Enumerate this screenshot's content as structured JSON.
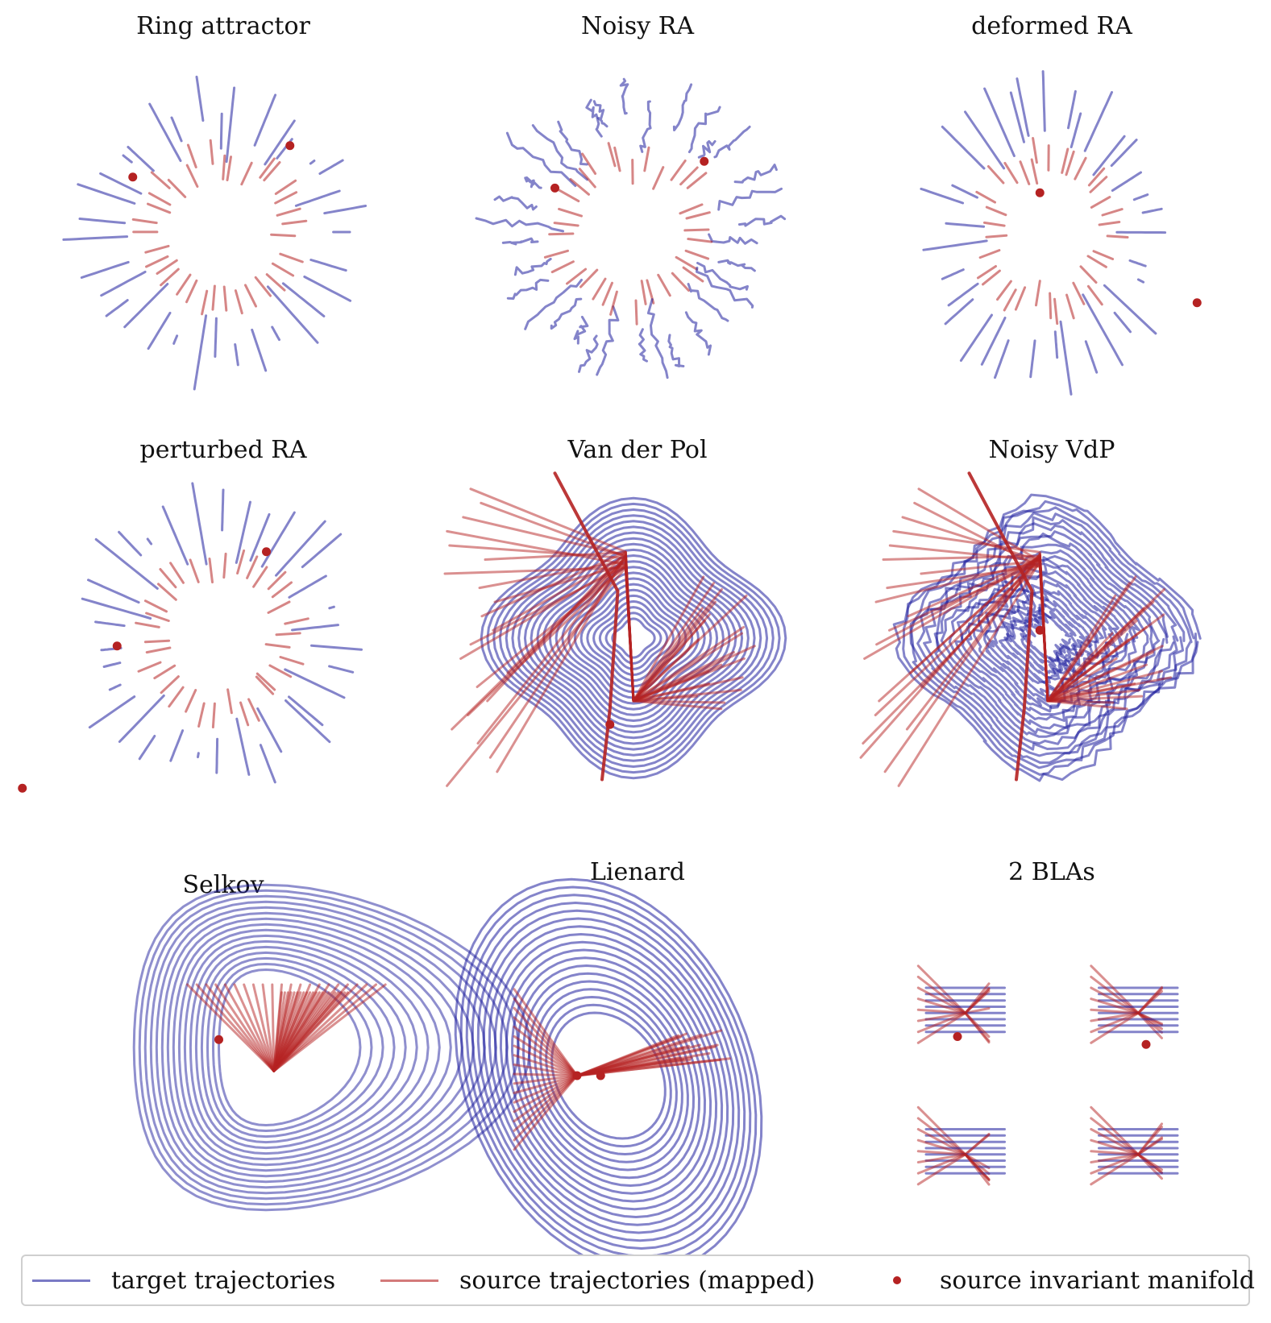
{
  "colors": {
    "target": "#1f1f9e",
    "source": "#b52222",
    "manifold": "#b52222"
  },
  "legend": {
    "target_label": "target trajectories",
    "source_label": "source trajectories (mapped)",
    "manifold_label": "source invariant manifold"
  },
  "chart_data": [
    {
      "type": "line",
      "title": "Ring attractor",
      "kind": "ring",
      "manifold_points": [
        [
          -0.55,
          0.35
        ],
        [
          0.45,
          0.55
        ]
      ]
    },
    {
      "type": "line",
      "title": "Noisy RA",
      "kind": "ring_noisy",
      "manifold_points": [
        [
          -0.5,
          0.28
        ],
        [
          0.45,
          0.45
        ]
      ]
    },
    {
      "type": "line",
      "title": "deformed RA",
      "kind": "ring_deformed",
      "manifold_points": [
        [
          -0.05,
          0.25
        ],
        [
          0.95,
          -0.45
        ]
      ]
    },
    {
      "type": "line",
      "title": "perturbed RA",
      "kind": "ring_perturbed",
      "manifold_points": [
        [
          -0.65,
          -0.05
        ],
        [
          0.3,
          0.55
        ]
      ]
    },
    {
      "type": "line",
      "title": "Van der Pol",
      "kind": "vdp",
      "manifold_points": [
        [
          -0.15,
          -0.55
        ]
      ]
    },
    {
      "type": "line",
      "title": "Noisy VdP",
      "kind": "vdp_noisy",
      "manifold_points": [
        [
          -0.05,
          0.05
        ]
      ]
    },
    {
      "type": "line",
      "title": "Selkov",
      "kind": "selkov",
      "manifold_points": [
        [
          -1.55,
          1.65
        ],
        [
          -0.3,
          0.05
        ]
      ]
    },
    {
      "type": "line",
      "title": "Lienard",
      "kind": "lienard",
      "manifold_points": [
        [
          -0.2,
          0.0
        ],
        [
          -0.05,
          0.0
        ]
      ]
    },
    {
      "type": "line",
      "title": "2 BLAs",
      "kind": "blas",
      "manifold_points": [
        [
          -0.6,
          0.3
        ],
        [
          0.6,
          0.25
        ]
      ]
    }
  ]
}
